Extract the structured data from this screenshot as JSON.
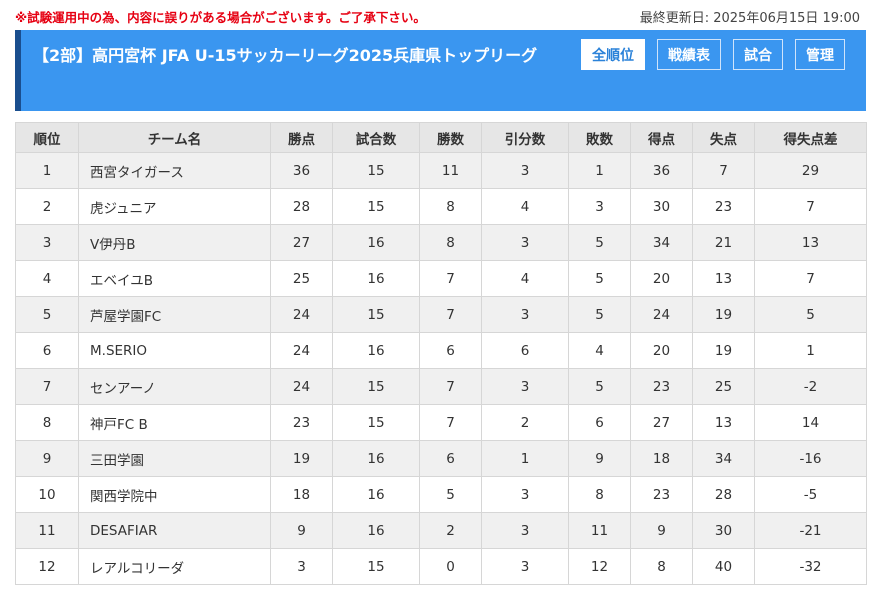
{
  "notice": "※試験運用中の為、内容に誤りがある場合がございます。ご了承下さい。",
  "last_updated": "最終更新日: 2025年06月15日 19:00",
  "league_title": "【2部】高円宮杯 JFA U-15サッカーリーグ2025兵庫県トップリーグ",
  "nav": [
    "全順位",
    "戦績表",
    "試合",
    "管理"
  ],
  "colors": {
    "accent": "#3a96f0",
    "accent_border": "#1a4e8e",
    "notice": "#e60012"
  },
  "table": {
    "headers": [
      "順位",
      "チーム名",
      "勝点",
      "試合数",
      "勝数",
      "引分数",
      "敗数",
      "得点",
      "失点",
      "得失点差"
    ],
    "rows": [
      [
        "1",
        "西宮タイガース",
        "36",
        "15",
        "11",
        "3",
        "1",
        "36",
        "7",
        "29"
      ],
      [
        "2",
        "虎ジュニア",
        "28",
        "15",
        "8",
        "4",
        "3",
        "30",
        "23",
        "7"
      ],
      [
        "3",
        "V伊丹B",
        "27",
        "16",
        "8",
        "3",
        "5",
        "34",
        "21",
        "13"
      ],
      [
        "4",
        "エベイユB",
        "25",
        "16",
        "7",
        "4",
        "5",
        "20",
        "13",
        "7"
      ],
      [
        "5",
        "芦屋学園FC",
        "24",
        "15",
        "7",
        "3",
        "5",
        "24",
        "19",
        "5"
      ],
      [
        "6",
        "M.SERIO",
        "24",
        "16",
        "6",
        "6",
        "4",
        "20",
        "19",
        "1"
      ],
      [
        "7",
        "センアーノ",
        "24",
        "15",
        "7",
        "3",
        "5",
        "23",
        "25",
        "-2"
      ],
      [
        "8",
        "神戸FC B",
        "23",
        "15",
        "7",
        "2",
        "6",
        "27",
        "13",
        "14"
      ],
      [
        "9",
        "三田学園",
        "19",
        "16",
        "6",
        "1",
        "9",
        "18",
        "34",
        "-16"
      ],
      [
        "10",
        "関西学院中",
        "18",
        "16",
        "5",
        "3",
        "8",
        "23",
        "28",
        "-5"
      ],
      [
        "11",
        "DESAFIAR",
        "9",
        "16",
        "2",
        "3",
        "11",
        "9",
        "30",
        "-21"
      ],
      [
        "12",
        "レアルコリーダ",
        "3",
        "15",
        "0",
        "3",
        "12",
        "8",
        "40",
        "-32"
      ]
    ]
  }
}
